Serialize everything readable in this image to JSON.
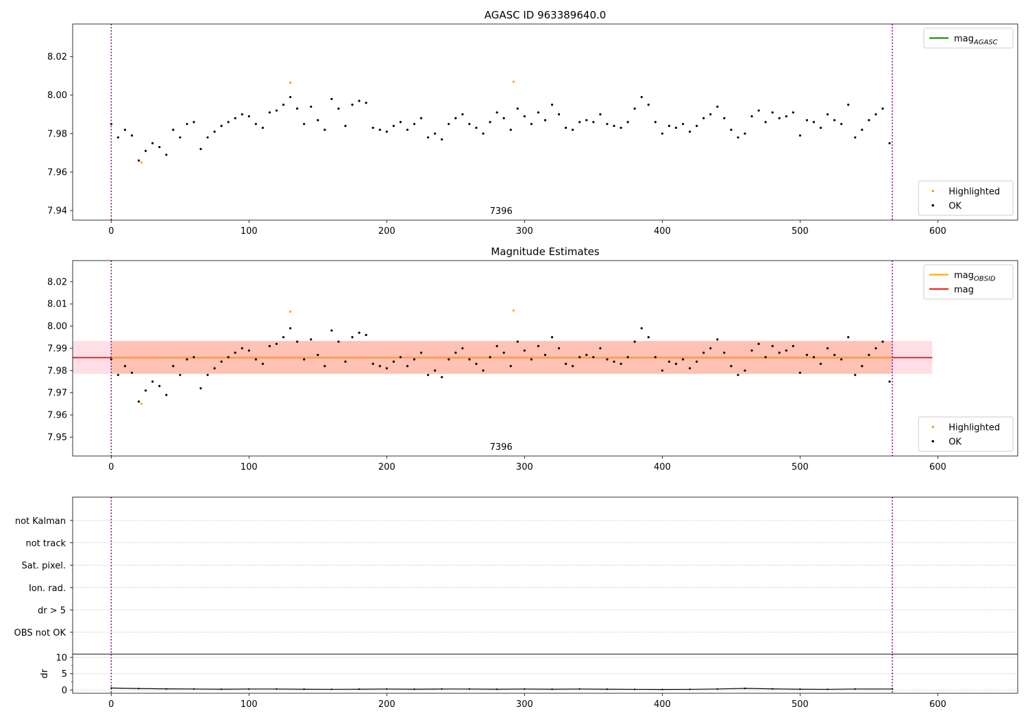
{
  "colors": {
    "ok": "#000000",
    "highlighted": "#ffa500",
    "mag_agasc": "#008000",
    "mag_obsid": "#ffa500",
    "mag": "#ff0000",
    "band_outer": "#ffc0cb",
    "band_inner": "#ffa07a",
    "obs_boundary": "#800080",
    "grid": "#b0b0b0"
  },
  "chart_data": [
    {
      "type": "scatter",
      "title": "AGASC ID 963389640.0",
      "xlabel": "",
      "ylabel": "",
      "xlim": [
        -28,
        658
      ],
      "ylim": [
        7.935,
        8.037
      ],
      "xticks": [
        0,
        100,
        200,
        300,
        400,
        500,
        600
      ],
      "yticks": [
        7.94,
        7.96,
        7.98,
        8.0,
        8.02
      ],
      "ytick_format": 2,
      "obs_boundaries": [
        0,
        567
      ],
      "obs_labels": [
        {
          "x": 283,
          "text": "7396"
        }
      ],
      "lines": [],
      "legends": [
        {
          "corner": "top-right",
          "entries": [
            {
              "kind": "line",
              "color": "#008000",
              "label": "mag",
              "sub": "AGASC"
            }
          ]
        },
        {
          "corner": "bottom-right",
          "entries": [
            {
              "kind": "point",
              "color": "#ffa500",
              "label": "Highlighted"
            },
            {
              "kind": "point",
              "color": "#000000",
              "label": "OK"
            }
          ]
        }
      ],
      "series": [
        {
          "name": "Highlighted",
          "color": "#ffa500",
          "x": [
            22,
            130,
            292
          ],
          "y": [
            7.965,
            8.0065,
            8.007
          ]
        },
        {
          "name": "OK",
          "color": "#000000",
          "x": [
            0,
            5,
            10,
            15,
            20,
            25,
            30,
            35,
            40,
            45,
            50,
            55,
            60,
            65,
            70,
            75,
            80,
            85,
            90,
            95,
            100,
            105,
            110,
            115,
            120,
            125,
            130,
            135,
            140,
            145,
            150,
            155,
            160,
            165,
            170,
            175,
            180,
            185,
            190,
            195,
            200,
            205,
            210,
            215,
            220,
            225,
            230,
            235,
            240,
            245,
            250,
            255,
            260,
            265,
            270,
            275,
            280,
            285,
            290,
            295,
            300,
            305,
            310,
            315,
            320,
            325,
            330,
            335,
            340,
            345,
            350,
            355,
            360,
            365,
            370,
            375,
            380,
            385,
            390,
            395,
            400,
            405,
            410,
            415,
            420,
            425,
            430,
            435,
            440,
            445,
            450,
            455,
            460,
            465,
            470,
            475,
            480,
            485,
            490,
            495,
            500,
            505,
            510,
            515,
            520,
            525,
            530,
            535,
            540,
            545,
            550,
            555,
            560,
            565
          ],
          "y": [
            7.985,
            7.978,
            7.982,
            7.979,
            7.966,
            7.971,
            7.975,
            7.973,
            7.969,
            7.982,
            7.978,
            7.985,
            7.986,
            7.972,
            7.978,
            7.981,
            7.984,
            7.986,
            7.988,
            7.99,
            7.989,
            7.985,
            7.983,
            7.991,
            7.992,
            7.995,
            7.999,
            7.993,
            7.985,
            7.994,
            7.987,
            7.982,
            7.998,
            7.993,
            7.984,
            7.995,
            7.997,
            7.996,
            7.983,
            7.982,
            7.981,
            7.984,
            7.986,
            7.982,
            7.985,
            7.988,
            7.978,
            7.98,
            7.977,
            7.985,
            7.988,
            7.99,
            7.985,
            7.983,
            7.98,
            7.986,
            7.991,
            7.988,
            7.982,
            7.993,
            7.989,
            7.985,
            7.991,
            7.987,
            7.995,
            7.99,
            7.983,
            7.982,
            7.986,
            7.987,
            7.986,
            7.99,
            7.985,
            7.984,
            7.983,
            7.986,
            7.993,
            7.999,
            7.995,
            7.986,
            7.98,
            7.984,
            7.983,
            7.985,
            7.981,
            7.984,
            7.988,
            7.99,
            7.994,
            7.988,
            7.982,
            7.978,
            7.98,
            7.989,
            7.992,
            7.986,
            7.991,
            7.988,
            7.989,
            7.991,
            7.979,
            7.987,
            7.986,
            7.983,
            7.99,
            7.987,
            7.985,
            7.995,
            7.978,
            7.982,
            7.987,
            7.99,
            7.993,
            7.975
          ]
        }
      ]
    },
    {
      "type": "scatter",
      "title": "Magnitude Estimates",
      "xlabel": "",
      "ylabel": "",
      "xlim": [
        -28,
        658
      ],
      "ylim": [
        7.9415,
        8.0295
      ],
      "xticks": [
        0,
        100,
        200,
        300,
        400,
        500,
        600
      ],
      "yticks": [
        7.95,
        7.96,
        7.97,
        7.98,
        7.99,
        8.0,
        8.01,
        8.02
      ],
      "ytick_format": 2,
      "obs_boundaries": [
        0,
        567
      ],
      "obs_labels": [
        {
          "x": 283,
          "text": "7396"
        }
      ],
      "bands": [
        {
          "x": [
            -28,
            596
          ],
          "y": [
            7.9785,
            7.9933
          ],
          "color": "#ffc0cb",
          "alpha": 0.5
        },
        {
          "x": [
            0,
            567
          ],
          "y": [
            7.9785,
            7.9933
          ],
          "color": "#ffa07a",
          "alpha": 0.45
        }
      ],
      "lines": [
        {
          "x": [
            -28,
            596
          ],
          "y": 7.9858,
          "color": "#ff0000"
        },
        {
          "x": [
            0,
            567
          ],
          "y": 7.9858,
          "color": "#ffa500"
        }
      ],
      "legends": [
        {
          "corner": "top-right",
          "entries": [
            {
              "kind": "line",
              "color": "#ffa500",
              "label": "mag",
              "sub": "OBSID"
            },
            {
              "kind": "line",
              "color": "#ff0000",
              "label": "mag"
            }
          ]
        },
        {
          "corner": "bottom-right",
          "entries": [
            {
              "kind": "point",
              "color": "#ffa500",
              "label": "Highlighted"
            },
            {
              "kind": "point",
              "color": "#000000",
              "label": "OK"
            }
          ]
        }
      ],
      "series": [
        {
          "name": "Highlighted",
          "color": "#ffa500",
          "x": [
            22,
            130,
            292
          ],
          "y": [
            7.965,
            8.0065,
            8.007
          ]
        },
        {
          "name": "OK",
          "color": "#000000",
          "x": [
            0,
            5,
            10,
            15,
            20,
            25,
            30,
            35,
            40,
            45,
            50,
            55,
            60,
            65,
            70,
            75,
            80,
            85,
            90,
            95,
            100,
            105,
            110,
            115,
            120,
            125,
            130,
            135,
            140,
            145,
            150,
            155,
            160,
            165,
            170,
            175,
            180,
            185,
            190,
            195,
            200,
            205,
            210,
            215,
            220,
            225,
            230,
            235,
            240,
            245,
            250,
            255,
            260,
            265,
            270,
            275,
            280,
            285,
            290,
            295,
            300,
            305,
            310,
            315,
            320,
            325,
            330,
            335,
            340,
            345,
            350,
            355,
            360,
            365,
            370,
            375,
            380,
            385,
            390,
            395,
            400,
            405,
            410,
            415,
            420,
            425,
            430,
            435,
            440,
            445,
            450,
            455,
            460,
            465,
            470,
            475,
            480,
            485,
            490,
            495,
            500,
            505,
            510,
            515,
            520,
            525,
            530,
            535,
            540,
            545,
            550,
            555,
            560,
            565
          ],
          "y": [
            7.985,
            7.978,
            7.982,
            7.979,
            7.966,
            7.971,
            7.975,
            7.973,
            7.969,
            7.982,
            7.978,
            7.985,
            7.986,
            7.972,
            7.978,
            7.981,
            7.984,
            7.986,
            7.988,
            7.99,
            7.989,
            7.985,
            7.983,
            7.991,
            7.992,
            7.995,
            7.999,
            7.993,
            7.985,
            7.994,
            7.987,
            7.982,
            7.998,
            7.993,
            7.984,
            7.995,
            7.997,
            7.996,
            7.983,
            7.982,
            7.981,
            7.984,
            7.986,
            7.982,
            7.985,
            7.988,
            7.978,
            7.98,
            7.977,
            7.985,
            7.988,
            7.99,
            7.985,
            7.983,
            7.98,
            7.986,
            7.991,
            7.988,
            7.982,
            7.993,
            7.989,
            7.985,
            7.991,
            7.987,
            7.995,
            7.99,
            7.983,
            7.982,
            7.986,
            7.987,
            7.986,
            7.99,
            7.985,
            7.984,
            7.983,
            7.986,
            7.993,
            7.999,
            7.995,
            7.986,
            7.98,
            7.984,
            7.983,
            7.985,
            7.981,
            7.984,
            7.988,
            7.99,
            7.994,
            7.988,
            7.982,
            7.978,
            7.98,
            7.989,
            7.992,
            7.986,
            7.991,
            7.988,
            7.989,
            7.991,
            7.979,
            7.987,
            7.986,
            7.983,
            7.99,
            7.987,
            7.985,
            7.995,
            7.978,
            7.982,
            7.987,
            7.99,
            7.993,
            7.975
          ]
        }
      ]
    },
    {
      "type": "table",
      "title": "",
      "xlim": [
        -28,
        658
      ],
      "rows": [
        "OBS not OK",
        "dr > 5",
        "Ion. rad.",
        "Sat. pixel.",
        "not track",
        "not Kalman"
      ],
      "obs_boundaries": [
        0,
        567
      ],
      "flags": []
    },
    {
      "type": "line",
      "title": "",
      "xlabel": "",
      "ylabel": "dr",
      "xlim": [
        -28,
        658
      ],
      "ylim": [
        -1,
        11
      ],
      "xticks": [
        0,
        100,
        200,
        300,
        400,
        500,
        600
      ],
      "yticks": [
        0,
        5,
        10
      ],
      "ytick_format": 0,
      "obs_boundaries": [
        0,
        567
      ],
      "series": [
        {
          "name": "",
          "color": "#000000",
          "x": [
            0,
            20,
            40,
            60,
            80,
            100,
            120,
            140,
            160,
            180,
            200,
            220,
            240,
            260,
            280,
            300,
            320,
            340,
            360,
            380,
            400,
            420,
            440,
            460,
            480,
            500,
            520,
            540,
            567
          ],
          "y": [
            0.6,
            0.45,
            0.35,
            0.3,
            0.25,
            0.3,
            0.3,
            0.25,
            0.2,
            0.25,
            0.3,
            0.25,
            0.3,
            0.3,
            0.25,
            0.3,
            0.25,
            0.3,
            0.25,
            0.2,
            0.15,
            0.2,
            0.3,
            0.5,
            0.35,
            0.25,
            0.2,
            0.3,
            0.3
          ]
        }
      ]
    }
  ]
}
